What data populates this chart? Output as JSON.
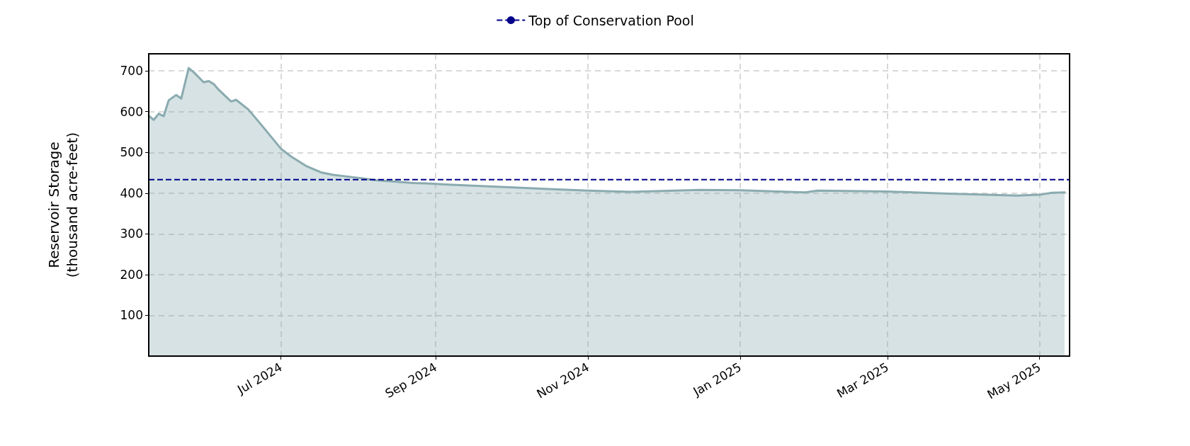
{
  "chart_data": {
    "type": "area",
    "ylabel": "Reservoir Storage\n(thousand acre-feet)",
    "x": [
      "2024-05-09",
      "2024-05-11",
      "2024-05-13",
      "2024-05-15",
      "2024-05-17",
      "2024-05-20",
      "2024-05-22",
      "2024-05-25",
      "2024-05-27",
      "2024-05-31",
      "2024-06-02",
      "2024-06-04",
      "2024-06-06",
      "2024-06-11",
      "2024-06-13",
      "2024-06-18",
      "2024-06-24",
      "2024-07-01",
      "2024-07-05",
      "2024-07-11",
      "2024-07-17",
      "2024-07-22",
      "2024-07-30",
      "2024-08-08",
      "2024-08-23",
      "2024-08-28",
      "2024-09-06",
      "2024-11-01",
      "2024-11-18",
      "2024-12-16",
      "2025-01-01",
      "2025-01-27",
      "2025-02-01",
      "2025-03-01",
      "2025-03-25",
      "2025-04-22",
      "2025-05-01",
      "2025-05-06",
      "2025-05-11"
    ],
    "series": [
      {
        "color": "#8aabb0",
        "values": [
          590,
          580,
          595,
          589,
          628,
          641,
          632,
          707,
          697,
          672,
          675,
          668,
          654,
          625,
          629,
          605,
          561,
          509,
          490,
          467,
          451,
          445,
          439,
          432,
          425,
          424,
          421,
          406,
          403,
          408,
          407,
          402,
          406,
          404,
          399,
          394,
          396,
          401,
          402
        ]
      }
    ],
    "ylim": [
      0,
      742
    ],
    "yticks": [
      100,
      200,
      300,
      400,
      500,
      600,
      700
    ],
    "xlim": [
      "2024-05-09",
      "2025-05-13"
    ],
    "xticks": [
      {
        "value": "2024-07-01",
        "label": "Jul 2024"
      },
      {
        "value": "2024-09-01",
        "label": "Sep 2024"
      },
      {
        "value": "2024-11-01",
        "label": "Nov 2024"
      },
      {
        "value": "2025-01-01",
        "label": "Jan 2025"
      },
      {
        "value": "2025-03-01",
        "label": "Mar 2025"
      },
      {
        "value": "2025-05-01",
        "label": "May 2025"
      }
    ],
    "ref_lines": [
      {
        "axis": "y",
        "value": 433,
        "label": "Top of Conservation Pool",
        "color": "#00008b",
        "line_style": "dashed"
      }
    ],
    "grid": true,
    "legend": "top",
    "marker": "none",
    "line_style": "solid"
  }
}
